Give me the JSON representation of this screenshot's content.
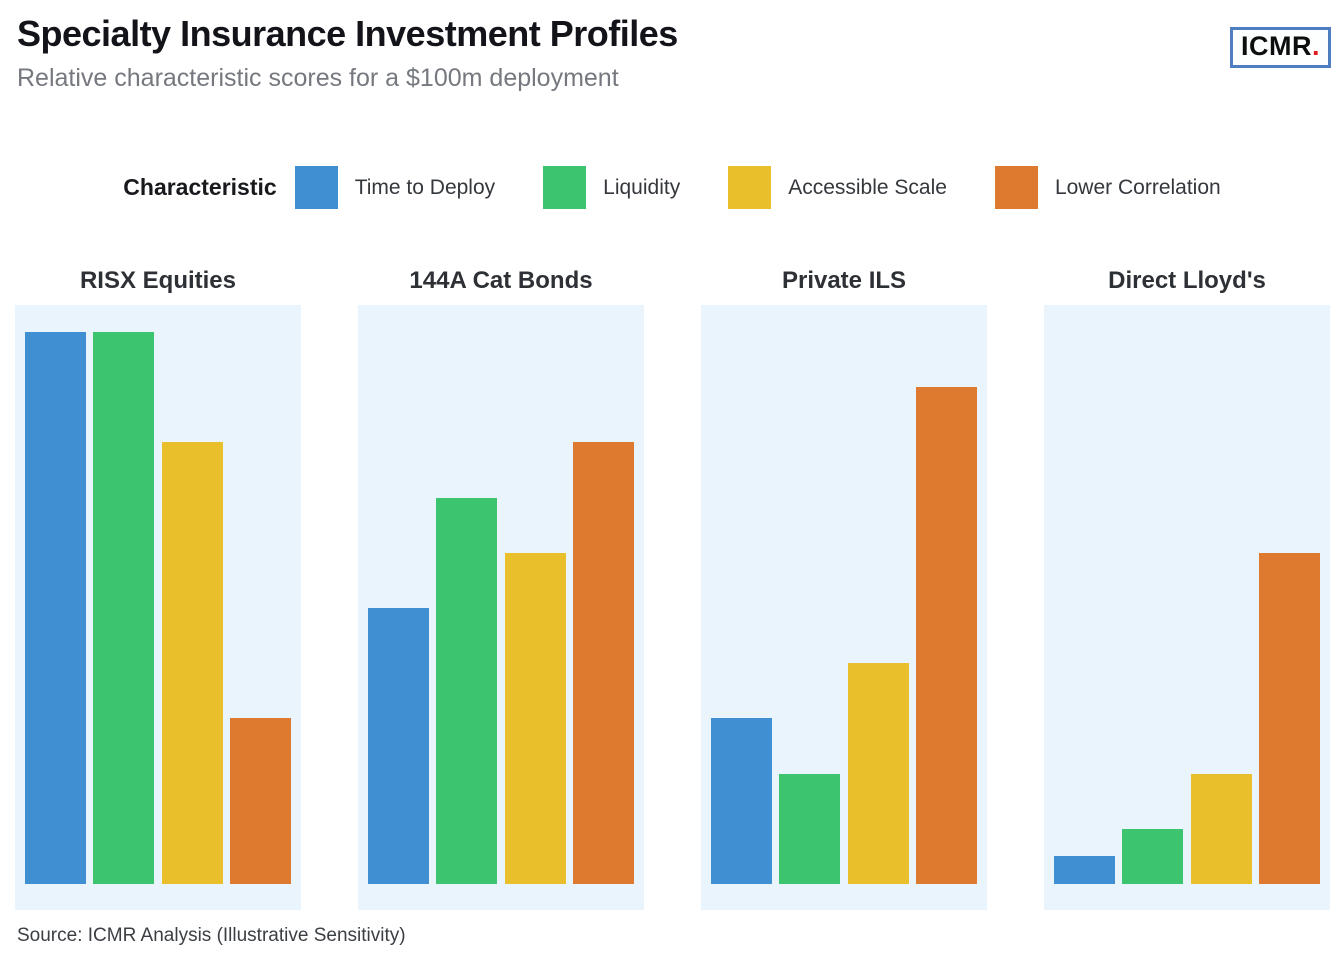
{
  "header": {
    "title": "Specialty Insurance Investment Profiles",
    "subtitle": "Relative characteristic scores for a $100m deployment",
    "logo_text": "ICMR",
    "logo_dot": "."
  },
  "legend": {
    "title": "Characteristic",
    "items": [
      {
        "label": "Time to Deploy",
        "color": "#3f8fd2"
      },
      {
        "label": "Liquidity",
        "color": "#3dc46e"
      },
      {
        "label": "Accessible Scale",
        "color": "#e9bf2b"
      },
      {
        "label": "Lower Correlation",
        "color": "#de7a2f"
      }
    ]
  },
  "chart_data": {
    "type": "bar",
    "layout": "small-multiples",
    "title": "Specialty Insurance Investment Profiles",
    "subtitle": "Relative characteristic scores for a $100m deployment",
    "categories": [
      "Time to Deploy",
      "Liquidity",
      "Accessible Scale",
      "Lower Correlation"
    ],
    "series_colors": [
      "#3f8fd2",
      "#3dc46e",
      "#e9bf2b",
      "#de7a2f"
    ],
    "panels": [
      {
        "title": "RISX Equities",
        "values": [
          100,
          100,
          80,
          30
        ]
      },
      {
        "title": "144A Cat Bonds",
        "values": [
          50,
          70,
          60,
          80
        ]
      },
      {
        "title": "Private ILS",
        "values": [
          30,
          20,
          40,
          90
        ]
      },
      {
        "title": "Direct Lloyd's",
        "values": [
          5,
          10,
          20,
          60
        ]
      }
    ],
    "ylim": [
      0,
      100
    ],
    "grid": false,
    "axis_labels_shown": false,
    "legend_position": "top-center",
    "panel_background": "#e9f4fd"
  },
  "footer": {
    "source": "Source: ICMR Analysis (Illustrative Sensitivity)"
  }
}
